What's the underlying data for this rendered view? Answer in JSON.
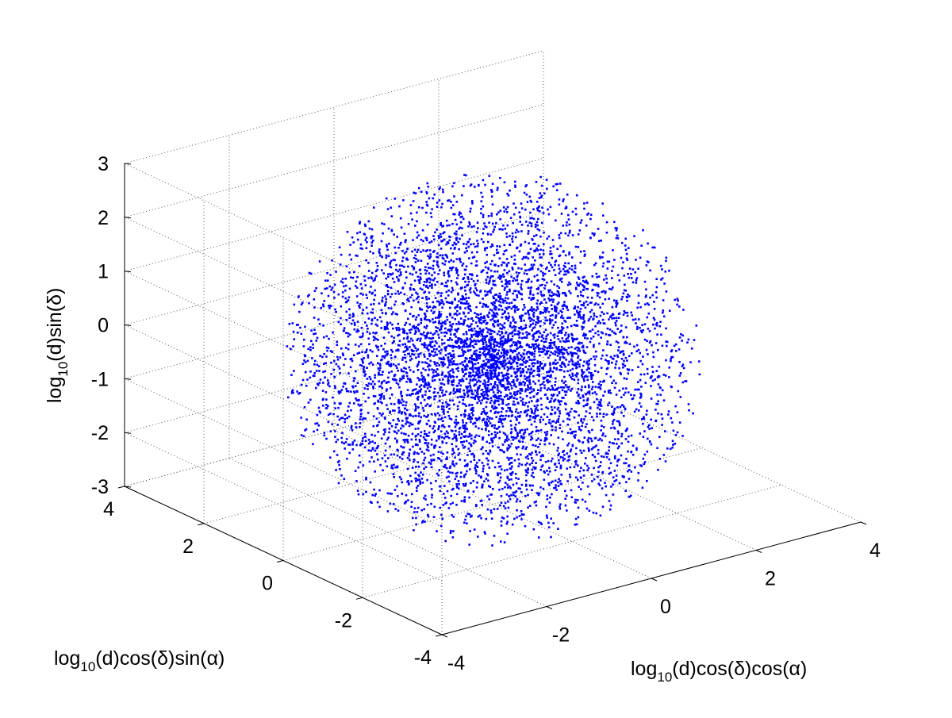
{
  "chart_data": {
    "type": "scatter",
    "title": "",
    "grid": true,
    "marker_color": "#0000ff",
    "axes": {
      "x": {
        "label_prefix": "log",
        "label_sub": "10",
        "label_suffix": "(d)cos(δ)cos(α)",
        "lim": [
          -4,
          4
        ],
        "ticks": [
          "-4",
          "-2",
          "0",
          "2",
          "4"
        ]
      },
      "y": {
        "label_prefix": "log",
        "label_sub": "10",
        "label_suffix": "(d)cos(δ)sin(α)",
        "lim": [
          -4,
          4
        ],
        "ticks": [
          "-4",
          "-2",
          "0",
          "2",
          "4"
        ]
      },
      "z": {
        "label_prefix": "log",
        "label_sub": "10",
        "label_suffix": "(d)sin(δ)",
        "lim": [
          -3,
          3
        ],
        "ticks": [
          "-3",
          "-2",
          "-1",
          "0",
          "1",
          "2",
          "3"
        ]
      }
    },
    "series": [
      {
        "distribution": "isotropic point cloud centered near origin, concentrated at center",
        "center": [
          0,
          0,
          -0.3
        ],
        "max_radius": 3.2,
        "point_count": 6000
      }
    ]
  }
}
